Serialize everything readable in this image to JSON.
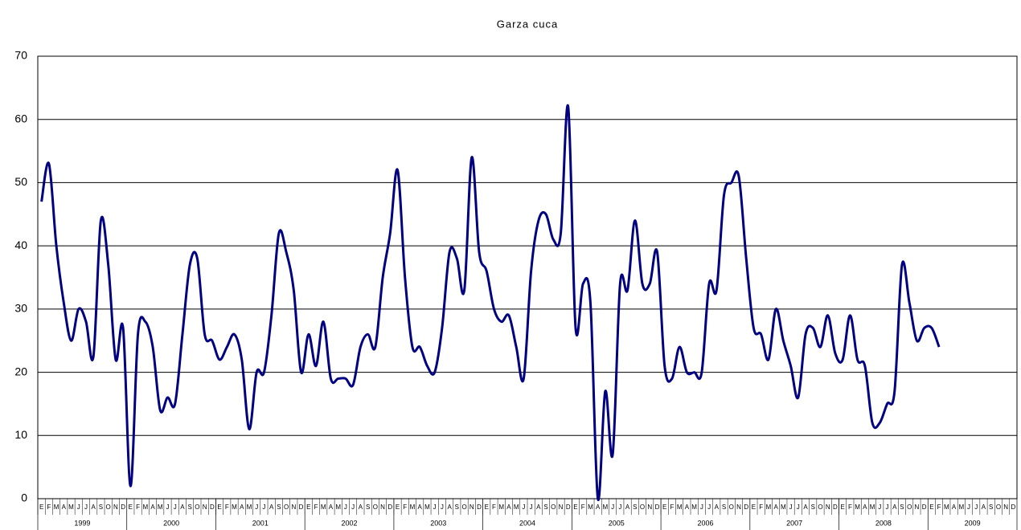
{
  "chart_data": {
    "type": "line",
    "title": "Garza cuca",
    "categories": [
      "E",
      "F",
      "M",
      "A",
      "M",
      "J",
      "J",
      "A",
      "S",
      "O",
      "N",
      "D",
      "E",
      "F",
      "M",
      "A",
      "M",
      "J",
      "J",
      "A",
      "S",
      "O",
      "N",
      "D",
      "E",
      "F",
      "M",
      "A",
      "M",
      "J",
      "J",
      "A",
      "S",
      "O",
      "N",
      "D",
      "E",
      "F",
      "M",
      "A",
      "M",
      "J",
      "J",
      "A",
      "S",
      "O",
      "N",
      "D",
      "E",
      "F",
      "M",
      "A",
      "M",
      "J",
      "J",
      "A",
      "S",
      "O",
      "N",
      "D",
      "E",
      "F",
      "M",
      "A",
      "M",
      "J",
      "J",
      "A",
      "S",
      "O",
      "N",
      "D",
      "E",
      "F",
      "M",
      "A",
      "M",
      "J",
      "J",
      "A",
      "S",
      "O",
      "N",
      "D",
      "E",
      "F",
      "M",
      "A",
      "M",
      "J",
      "J",
      "A",
      "S",
      "O",
      "N",
      "D",
      "E",
      "F",
      "M",
      "A",
      "M",
      "J",
      "J",
      "A",
      "S",
      "O",
      "N",
      "D",
      "E",
      "F",
      "M",
      "A",
      "M",
      "J",
      "J",
      "A",
      "S",
      "O",
      "N",
      "D",
      "E",
      "F",
      "M",
      "A",
      "M",
      "J",
      "J",
      "A",
      "S",
      "O",
      "N",
      "D"
    ],
    "years": [
      "1999",
      "2000",
      "2001",
      "2002",
      "2003",
      "2004",
      "2005",
      "2006",
      "2007",
      "2008",
      "2009"
    ],
    "series": [
      {
        "name": "Garza cuca",
        "color": "#000080",
        "values": [
          47,
          53,
          40,
          31,
          25,
          30,
          28,
          22.5,
          44,
          37,
          22,
          27,
          2,
          26,
          28,
          24,
          14,
          16,
          15,
          26,
          37,
          38,
          26,
          25,
          22,
          24,
          26,
          22,
          11,
          20,
          20,
          29,
          42,
          39,
          33,
          20,
          26,
          21,
          28,
          19,
          19,
          19,
          18,
          24,
          26,
          24,
          35,
          42,
          52,
          35,
          24,
          24,
          21,
          20,
          27,
          39,
          38,
          33,
          54,
          39,
          36,
          30,
          28,
          29,
          24,
          19,
          36,
          44,
          45,
          41,
          42,
          62,
          27,
          34,
          31,
          0,
          17,
          7,
          34,
          33,
          44,
          34,
          34,
          39,
          21,
          19,
          24,
          20,
          20,
          20,
          34,
          33,
          48,
          50,
          51,
          38,
          27,
          26,
          22,
          30,
          25,
          21,
          16,
          26,
          27,
          24,
          29,
          23,
          22,
          29,
          22,
          21,
          12,
          12,
          15,
          17,
          37,
          31,
          25,
          27,
          27,
          24,
          null,
          null,
          null,
          null,
          null,
          null,
          null,
          null,
          null,
          null
        ]
      }
    ],
    "ylim": [
      0,
      70
    ],
    "yticks": [
      0,
      10,
      20,
      30,
      40,
      50,
      60,
      70
    ],
    "grid": true
  }
}
